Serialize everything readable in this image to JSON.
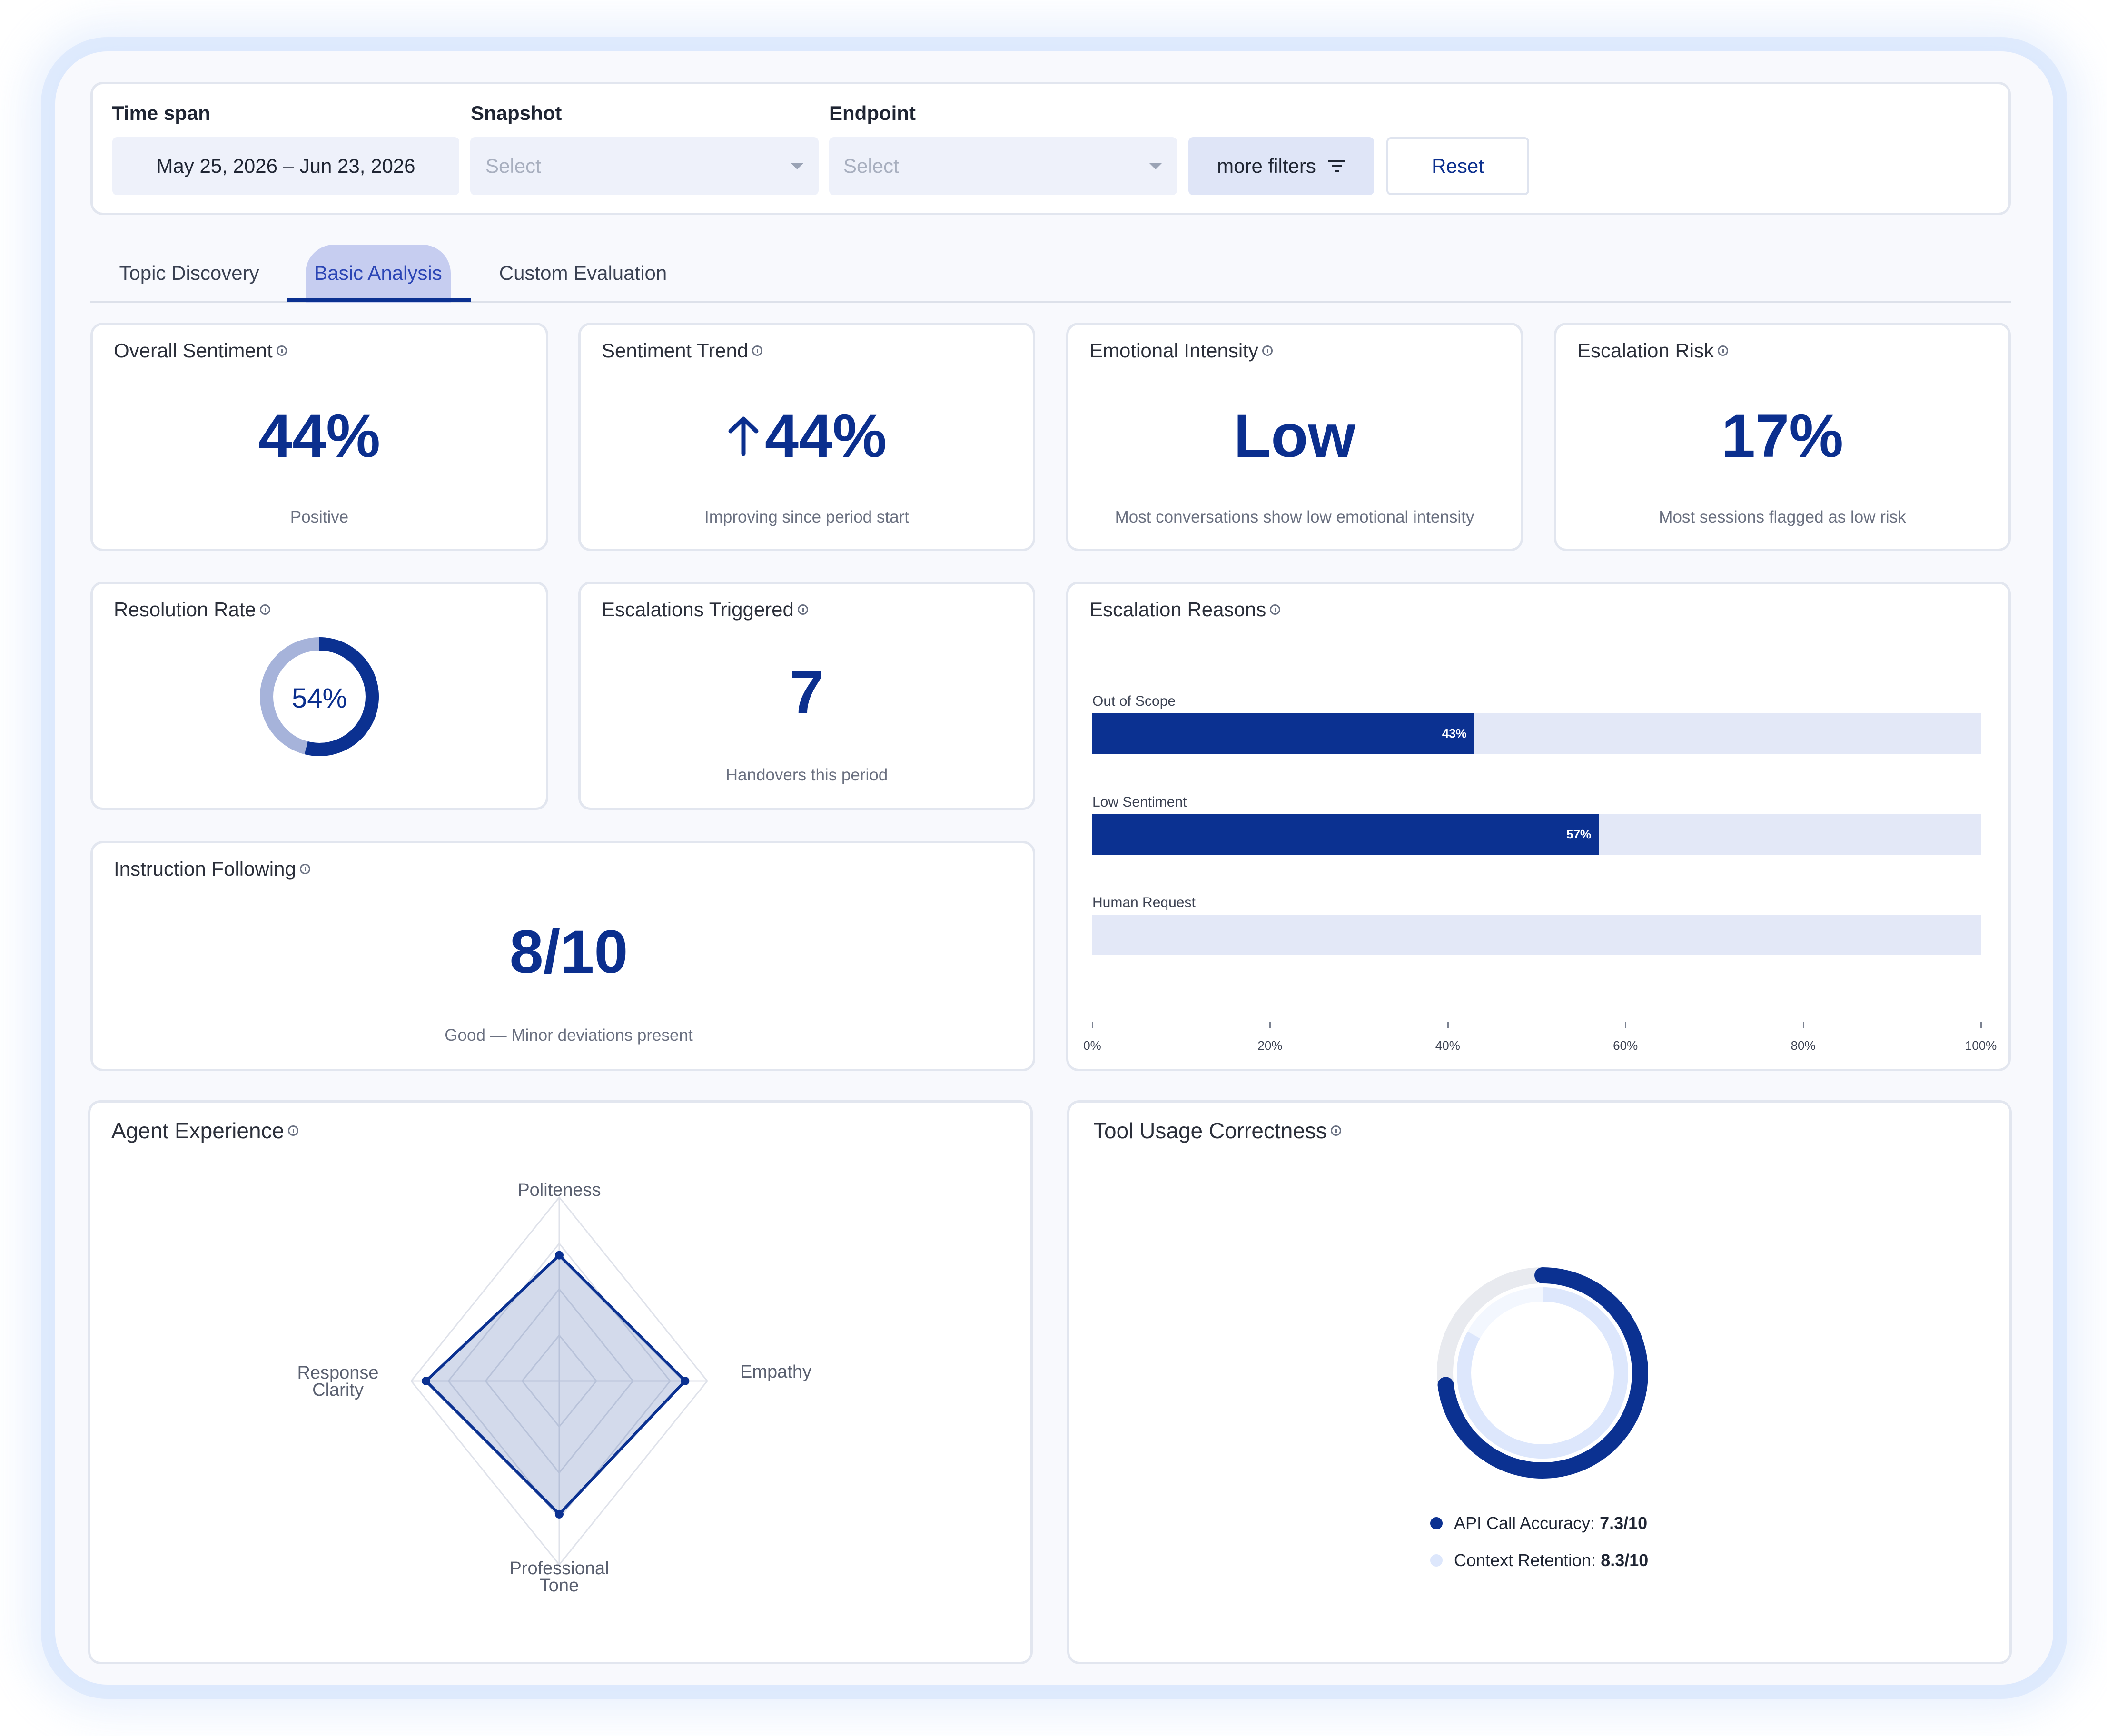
{
  "filters": {
    "time_span": {
      "label": "Time span",
      "value": "May 25, 2026 – Jun 23, 2026"
    },
    "snapshot": {
      "label": "Snapshot",
      "placeholder": "Select"
    },
    "endpoint": {
      "label": "Endpoint",
      "placeholder": "Select"
    },
    "more_filters_label": "more filters",
    "reset_label": "Reset"
  },
  "tabs": [
    {
      "label": "Topic Discovery",
      "active": false
    },
    {
      "label": "Basic Analysis",
      "active": true
    },
    {
      "label": "Custom Evaluation",
      "active": false
    }
  ],
  "metrics": {
    "overall_sentiment": {
      "title": "Overall Sentiment",
      "value": "44%",
      "caption": "Positive"
    },
    "sentiment_trend": {
      "title": "Sentiment Trend",
      "value": "44%",
      "direction": "up-arrow-icon",
      "caption": "Improving since period start"
    },
    "emotional_intensity": {
      "title": "Emotional Intensity",
      "value": "Low",
      "caption": "Most conversations show low emotional intensity"
    },
    "escalation_risk": {
      "title": "Escalation Risk",
      "value": "17%",
      "caption": "Most sessions flagged as low risk"
    },
    "resolution_rate": {
      "title": "Resolution Rate",
      "value": "54%",
      "fraction": 0.54
    },
    "escalations_triggered": {
      "title": "Escalations Triggered",
      "value": "7",
      "caption": "Handovers this period"
    },
    "instruction_following": {
      "title": "Instruction Following",
      "value": "8/10",
      "caption": "Good — Minor deviations present"
    }
  },
  "escalation_reasons": {
    "title": "Escalation Reasons",
    "bars": [
      {
        "label": "Out of Scope",
        "value": 43,
        "value_label": "43%"
      },
      {
        "label": "Low Sentiment",
        "value": 57,
        "value_label": "57%"
      },
      {
        "label": "Human Request",
        "value": 0,
        "value_label": ""
      }
    ],
    "ticks": [
      "0%",
      "20%",
      "40%",
      "60%",
      "80%",
      "100%"
    ]
  },
  "agent_experience": {
    "title": "Agent Experience",
    "axes": {
      "top": "Politeness",
      "right": "Empathy",
      "bottom_l1": "Professional",
      "bottom_l2": "Tone",
      "left_l1": "Response",
      "left_l2": "Clarity"
    },
    "values": {
      "politeness": 0.85,
      "empathy": 0.85,
      "professional_tone": 0.9,
      "response_clarity": 0.9
    }
  },
  "tool_usage": {
    "title": "Tool Usage Correctness",
    "legend": [
      {
        "label": "API Call Accuracy:",
        "value": "7.3/10",
        "score": 7.3,
        "color": "#0b3191"
      },
      {
        "label": "Context Retention:",
        "value": "8.3/10",
        "score": 8.3,
        "color": "#dde7fc"
      }
    ]
  },
  "colors": {
    "primary": "#0b3191",
    "tab_active_bg": "#c6cdf0",
    "bar_track": "#e3e8f7",
    "ring_track_light": "#a6b3da"
  }
}
